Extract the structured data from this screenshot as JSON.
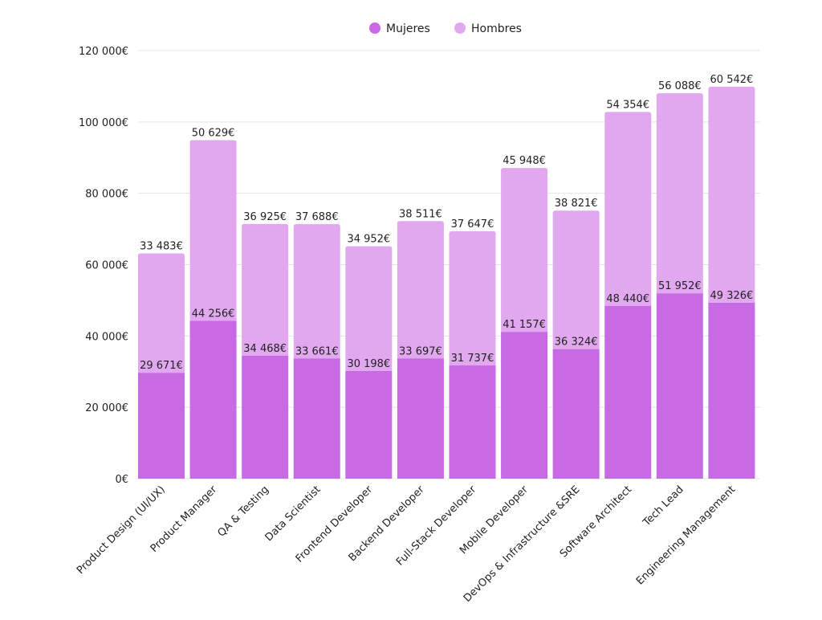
{
  "chart_data": {
    "type": "bar",
    "stacked": true,
    "categories": [
      "Product Design (UI/UX)",
      "Product Manager",
      "QA & Testing",
      "Data Scientist",
      "Frontend Developer",
      "Backend Developer",
      "Full-Stack Developer",
      "Mobile Developer",
      "DevOps & Infrastructure &SRE",
      "Software Architect",
      "Tech Lead",
      "Engineering Management"
    ],
    "series": [
      {
        "name": "Mujeres",
        "color": "#c86ae3",
        "values": [
          29671,
          44256,
          34468,
          33661,
          30198,
          33697,
          31737,
          41157,
          36324,
          48440,
          51952,
          49326
        ],
        "labels": [
          "29 671€",
          "44 256€",
          "34 468€",
          "33 661€",
          "30 198€",
          "33 697€",
          "31 737€",
          "41 157€",
          "36 324€",
          "48 440€",
          "51 952€",
          "49 326€"
        ]
      },
      {
        "name": "Hombres",
        "color": "#e1a8ef",
        "values": [
          33483,
          50629,
          36925,
          37688,
          34952,
          38511,
          37647,
          45948,
          38821,
          54354,
          56088,
          60542
        ],
        "labels": [
          "33 483€",
          "50 629€",
          "36 925€",
          "37 688€",
          "34 952€",
          "38 511€",
          "37 647€",
          "45 948€",
          "38 821€",
          "54 354€",
          "56 088€",
          "60 542€"
        ]
      }
    ],
    "ylim": [
      0,
      120000
    ],
    "yticks": [
      0,
      20000,
      40000,
      60000,
      80000,
      100000,
      120000
    ],
    "ytick_labels": [
      "0€",
      "20 000€",
      "40 000€",
      "60 000€",
      "80 000€",
      "100 000€",
      "120 000€"
    ],
    "grid": true,
    "legend_position": "top",
    "title": "",
    "xlabel": "",
    "ylabel": ""
  }
}
